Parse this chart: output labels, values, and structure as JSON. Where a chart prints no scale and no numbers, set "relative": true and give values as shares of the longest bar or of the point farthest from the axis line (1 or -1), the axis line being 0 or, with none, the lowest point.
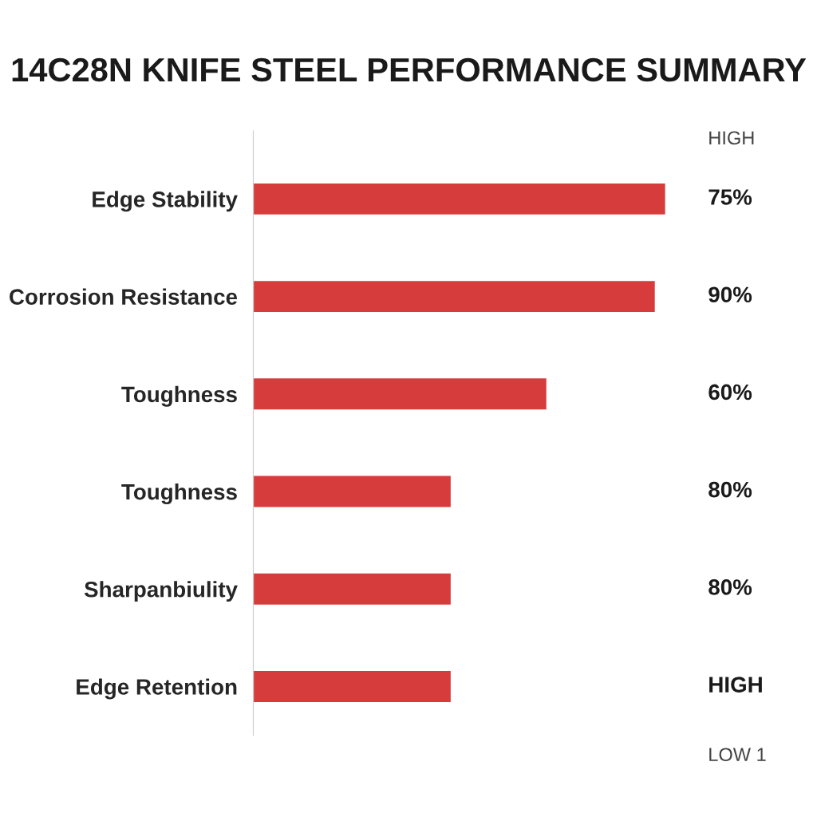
{
  "chart_data": {
    "type": "bar",
    "orientation": "horizontal",
    "relative": true,
    "title": "14C28N KNIFE STEEL PERFORMANCE SUMMARY",
    "categories": [
      "Edge Stability",
      "Corrosion Resistance",
      "Toughness",
      "Toughness",
      "Sharpanbiulity",
      "Edge Retention"
    ],
    "values": [
      1,
      0.975,
      0.712,
      0.48,
      0.48,
      0.48
    ],
    "color": "#d63c3c",
    "annotations": [
      "HIGH",
      "75%",
      "90%",
      "60%",
      "80%",
      "80%",
      "HIGH",
      "LOW 1"
    ]
  }
}
